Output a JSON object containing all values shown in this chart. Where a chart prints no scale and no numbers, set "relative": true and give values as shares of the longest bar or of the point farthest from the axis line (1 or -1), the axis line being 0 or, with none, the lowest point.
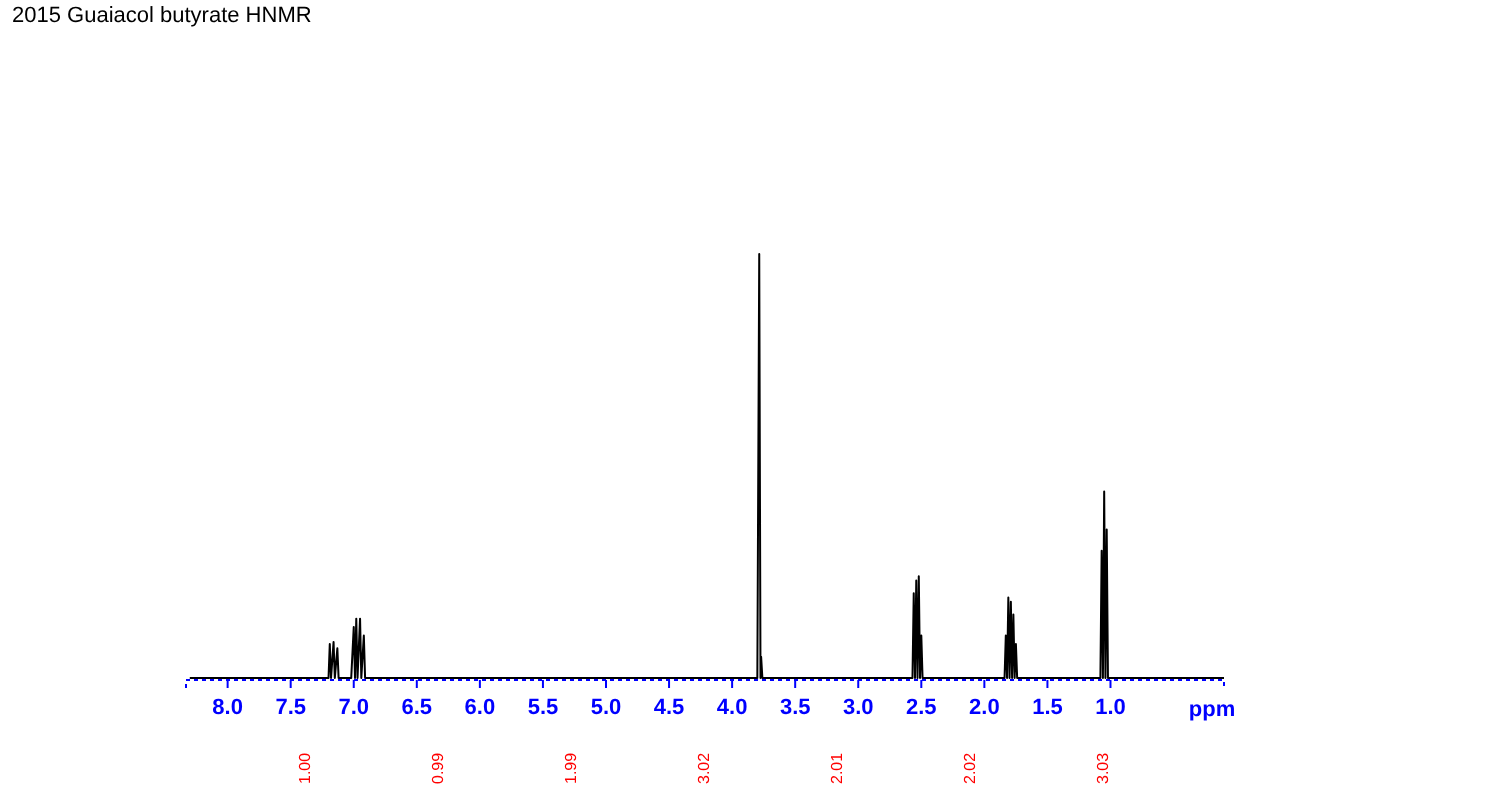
{
  "chart_data": {
    "type": "line",
    "title": "2015   Guaiacol butyrate HNMR",
    "xlabel": "ppm",
    "relative": true,
    "tick_labels": "x",
    "grid": false,
    "marker": "none",
    "xlim": [
      8.33,
      0.1
    ],
    "xticks": [
      {
        "value": 8,
        "label": "8.0"
      },
      {
        "value": 7.5,
        "label": "7.5"
      },
      {
        "value": 7,
        "label": "7.0"
      },
      {
        "value": 6.5,
        "label": "6.5"
      },
      {
        "value": 6,
        "label": "6.0"
      },
      {
        "value": 5.5,
        "label": "5.5"
      },
      {
        "value": 5,
        "label": "5.0"
      },
      {
        "value": 4.5,
        "label": "4.5"
      },
      {
        "value": 4,
        "label": "4.0"
      },
      {
        "value": 3.5,
        "label": "3.5"
      },
      {
        "value": 3,
        "label": "3.0"
      },
      {
        "value": 2.5,
        "label": "2.5"
      },
      {
        "value": 2,
        "label": "2.0"
      },
      {
        "value": 1.5,
        "label": "1.5"
      },
      {
        "value": 1,
        "label": "1.0"
      }
    ],
    "series": [
      {
        "color": "#000000",
        "x": [
          8.3,
          7.2,
          7.19,
          7.18,
          7.16,
          7.15,
          7.13,
          7.12,
          7.02,
          7.0,
          6.99,
          6.98,
          6.97,
          6.95,
          6.94,
          6.92,
          6.91,
          3.8,
          3.785,
          3.775,
          3.77,
          3.76,
          2.57,
          2.56,
          2.55,
          2.54,
          2.53,
          2.52,
          2.51,
          2.5,
          2.49,
          1.84,
          1.83,
          1.82,
          1.81,
          1.8,
          1.79,
          1.78,
          1.77,
          1.76,
          1.75,
          1.74,
          1.08,
          1.07,
          1.06,
          1.05,
          1.04,
          1.03,
          1.02,
          0.1
        ],
        "values": [
          0,
          0,
          0.08,
          0,
          0.085,
          0,
          0.07,
          0,
          0,
          0.12,
          0,
          0.14,
          0,
          0.14,
          0,
          0.1,
          0,
          0,
          1,
          0,
          0.05,
          0,
          0,
          0.2,
          0,
          0.23,
          0,
          0.24,
          0,
          0.1,
          0,
          0,
          0.1,
          0,
          0.19,
          0,
          0.18,
          0,
          0.15,
          0,
          0.08,
          0,
          0,
          0.3,
          0,
          0.44,
          0,
          0.35,
          0,
          0
        ]
      }
    ],
    "annotations": [
      "1.00",
      "0.99",
      "1.99",
      "3.02",
      "2.01",
      "2.02",
      "3.03"
    ]
  }
}
